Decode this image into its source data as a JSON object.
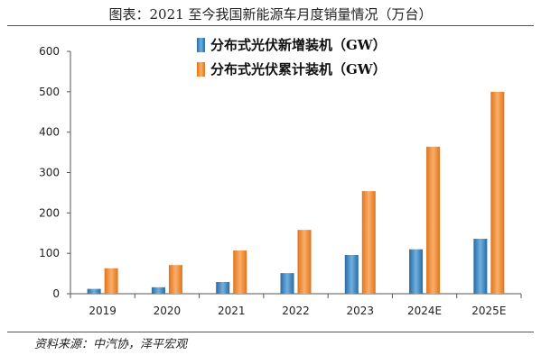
{
  "title": "图表：2021 至今我国新能源车月度销量情况（万台）",
  "source": "资料来源：中汽协，泽平宏观",
  "colors": {
    "new": "#3f86bd",
    "cumulative": "#f28a2e"
  },
  "chart_data": {
    "type": "bar",
    "categories": [
      "2019",
      "2020",
      "2021",
      "2022",
      "2023",
      "2024E",
      "2025E"
    ],
    "series": [
      {
        "name": "分布式光伏新增装机（GW）",
        "values": [
          12,
          16,
          29,
          51,
          96,
          110,
          136
        ]
      },
      {
        "name": "分布式光伏累计装机（GW）",
        "values": [
          63,
          71,
          107,
          158,
          254,
          364,
          500
        ]
      }
    ],
    "ylim": [
      0,
      600
    ],
    "yticks": [
      0,
      100,
      200,
      300,
      400,
      500,
      600
    ],
    "legend": "top-center",
    "grid": false
  }
}
